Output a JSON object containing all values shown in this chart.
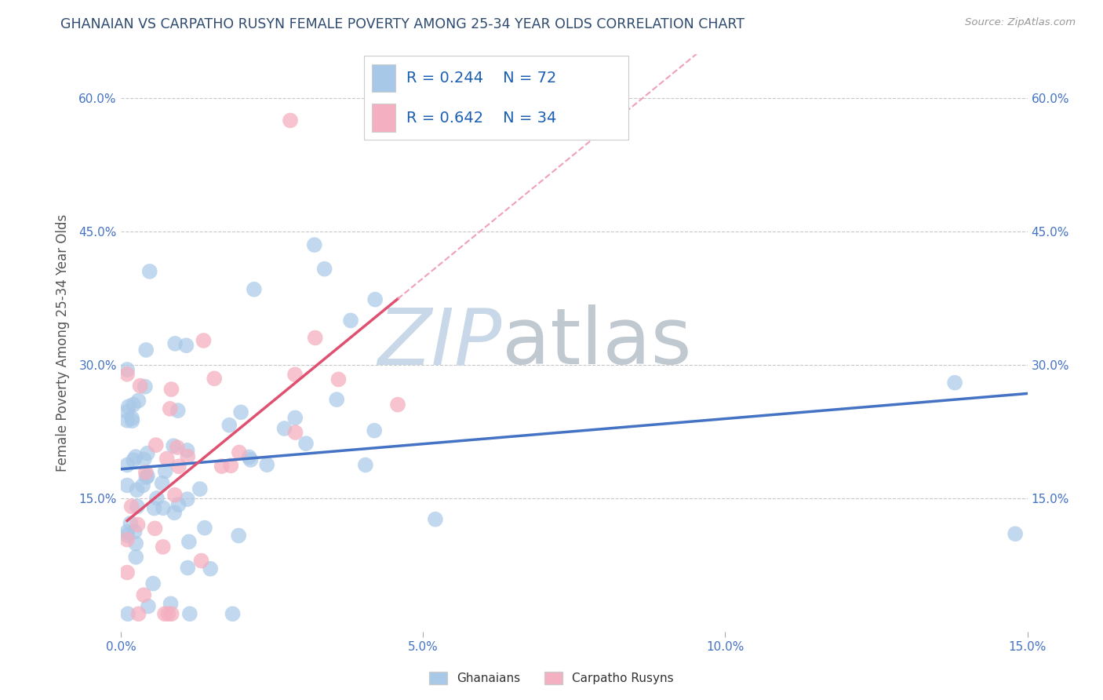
{
  "title": "GHANAIAN VS CARPATHO RUSYN FEMALE POVERTY AMONG 25-34 YEAR OLDS CORRELATION CHART",
  "source": "Source: ZipAtlas.com",
  "ylabel": "Female Poverty Among 25-34 Year Olds",
  "xlim": [
    0.0,
    0.15
  ],
  "ylim": [
    0.0,
    0.65
  ],
  "xtick_vals": [
    0.0,
    0.05,
    0.1,
    0.15
  ],
  "xtick_labels": [
    "0.0%",
    "5.0%",
    "10.0%",
    "15.0%"
  ],
  "ytick_vals": [
    0.0,
    0.15,
    0.3,
    0.45,
    0.6
  ],
  "ytick_labels": [
    "",
    "15.0%",
    "30.0%",
    "45.0%",
    "60.0%"
  ],
  "ghanaian_R": 0.244,
  "ghanaian_N": 72,
  "carpatho_R": 0.642,
  "carpatho_N": 34,
  "ghanaian_color": "#a8c8e8",
  "carpatho_color": "#f4afc0",
  "ghanaian_line_color": "#4472c4",
  "carpatho_line_color": "#e05070",
  "carpatho_dash_color": "#f0a0b8",
  "background_color": "#ffffff",
  "watermark_zip_color": "#c8d8e8",
  "watermark_atlas_color": "#c0c8d0",
  "tick_color": "#4472c4",
  "title_color": "#2e4a6e",
  "ylabel_color": "#555555",
  "source_color": "#999999",
  "legend_text_color": "#1a5fb4"
}
